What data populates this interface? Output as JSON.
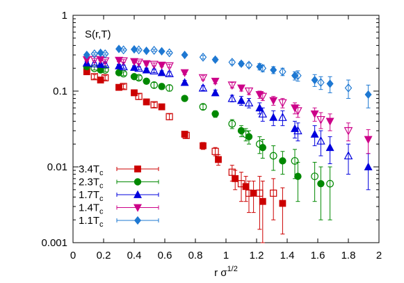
{
  "chart_data": {
    "type": "scatter",
    "title": "",
    "annotation": "S(r,T)",
    "xlabel": "r σ",
    "xlabel_sup": "1/2",
    "ylabel": "",
    "xlim": [
      0,
      2
    ],
    "ylim": [
      0.001,
      1
    ],
    "yscale": "log",
    "grid": false,
    "legend_position": "lower-left",
    "x_ticks": [
      0,
      0.2,
      0.4,
      0.6,
      0.8,
      1,
      1.2,
      1.4,
      1.6,
      1.8,
      2
    ],
    "x_tick_labels": [
      "0",
      "0.2",
      "0.4",
      "0.6",
      "0.8",
      "1",
      "1.2",
      "1.4",
      "1.6",
      "1.8",
      "2"
    ],
    "y_ticks": [
      0.001,
      0.01,
      0.1,
      1
    ],
    "y_tick_labels": [
      "0.001",
      "0.01",
      "0.1",
      "1"
    ],
    "series": [
      {
        "name": "3.4T",
        "name_sub": "c",
        "color": "#cc0000",
        "marker": "square",
        "points": [
          {
            "x": 0.09,
            "y": 0.18,
            "err": 0.01
          },
          {
            "x": 0.14,
            "y": 0.155,
            "err": 0.01
          },
          {
            "x": 0.18,
            "y": 0.14,
            "err": 0.01
          },
          {
            "x": 0.21,
            "y": 0.15,
            "err": 0.01
          },
          {
            "x": 0.3,
            "y": 0.112,
            "err": 0.008
          },
          {
            "x": 0.33,
            "y": 0.115,
            "err": 0.008
          },
          {
            "x": 0.4,
            "y": 0.095,
            "err": 0.007
          },
          {
            "x": 0.43,
            "y": 0.085,
            "err": 0.007
          },
          {
            "x": 0.48,
            "y": 0.072,
            "err": 0.006
          },
          {
            "x": 0.53,
            "y": 0.066,
            "err": 0.005
          },
          {
            "x": 0.58,
            "y": 0.062,
            "err": 0.005
          },
          {
            "x": 0.63,
            "y": 0.046,
            "err": 0.004
          },
          {
            "x": 0.73,
            "y": 0.027,
            "err": 0.002
          },
          {
            "x": 0.74,
            "y": 0.026,
            "err": 0.002
          },
          {
            "x": 0.85,
            "y": 0.019,
            "err": 0.002
          },
          {
            "x": 0.93,
            "y": 0.016,
            "err": 0.002
          },
          {
            "x": 0.95,
            "y": 0.0125,
            "err": 0.002
          },
          {
            "x": 1.04,
            "y": 0.0085,
            "err": 0.002
          },
          {
            "x": 1.06,
            "y": 0.007,
            "err": 0.002
          },
          {
            "x": 1.1,
            "y": 0.006,
            "err": 0.0025
          },
          {
            "x": 1.13,
            "y": 0.0055,
            "err": 0.002
          },
          {
            "x": 1.15,
            "y": 0.0045,
            "err": 0.002
          },
          {
            "x": 1.18,
            "y": 0.0045,
            "err": 0.002
          },
          {
            "x": 1.22,
            "y": 0.0045,
            "err": 0.003
          },
          {
            "x": 1.24,
            "y": 0.0035,
            "err": 0.003
          },
          {
            "x": 1.31,
            "y": 0.0045,
            "err": 0.0025
          },
          {
            "x": 1.37,
            "y": 0.0033,
            "err": 0.002
          }
        ]
      },
      {
        "name": "2.3T",
        "name_sub": "c",
        "color": "#008800",
        "marker": "circle",
        "points": [
          {
            "x": 0.09,
            "y": 0.21,
            "err": 0.01
          },
          {
            "x": 0.14,
            "y": 0.2,
            "err": 0.01
          },
          {
            "x": 0.18,
            "y": 0.19,
            "err": 0.01
          },
          {
            "x": 0.21,
            "y": 0.19,
            "err": 0.01
          },
          {
            "x": 0.3,
            "y": 0.175,
            "err": 0.01
          },
          {
            "x": 0.33,
            "y": 0.17,
            "err": 0.01
          },
          {
            "x": 0.4,
            "y": 0.155,
            "err": 0.01
          },
          {
            "x": 0.43,
            "y": 0.15,
            "err": 0.01
          },
          {
            "x": 0.48,
            "y": 0.135,
            "err": 0.01
          },
          {
            "x": 0.53,
            "y": 0.12,
            "err": 0.01
          },
          {
            "x": 0.58,
            "y": 0.115,
            "err": 0.01
          },
          {
            "x": 0.63,
            "y": 0.11,
            "err": 0.01
          },
          {
            "x": 0.73,
            "y": 0.08,
            "err": 0.006
          },
          {
            "x": 0.85,
            "y": 0.062,
            "err": 0.005
          },
          {
            "x": 0.93,
            "y": 0.05,
            "err": 0.005
          },
          {
            "x": 1.04,
            "y": 0.037,
            "err": 0.005
          },
          {
            "x": 1.1,
            "y": 0.03,
            "err": 0.005
          },
          {
            "x": 1.13,
            "y": 0.027,
            "err": 0.005
          },
          {
            "x": 1.15,
            "y": 0.025,
            "err": 0.005
          },
          {
            "x": 1.22,
            "y": 0.02,
            "err": 0.005
          },
          {
            "x": 1.24,
            "y": 0.018,
            "err": 0.005
          },
          {
            "x": 1.31,
            "y": 0.014,
            "err": 0.005
          },
          {
            "x": 1.37,
            "y": 0.012,
            "err": 0.004
          },
          {
            "x": 1.45,
            "y": 0.012,
            "err": 0.005
          },
          {
            "x": 1.47,
            "y": 0.0075,
            "err": 0.004
          },
          {
            "x": 1.58,
            "y": 0.0075,
            "err": 0.004
          },
          {
            "x": 1.62,
            "y": 0.006,
            "err": 0.004
          },
          {
            "x": 1.68,
            "y": 0.006,
            "err": 0.004
          }
        ]
      },
      {
        "name": "1.7T",
        "name_sub": "c",
        "color": "#0000dd",
        "marker": "triangle-up",
        "points": [
          {
            "x": 0.09,
            "y": 0.235,
            "err": 0.01
          },
          {
            "x": 0.14,
            "y": 0.23,
            "err": 0.01
          },
          {
            "x": 0.18,
            "y": 0.225,
            "err": 0.01
          },
          {
            "x": 0.21,
            "y": 0.225,
            "err": 0.01
          },
          {
            "x": 0.3,
            "y": 0.215,
            "err": 0.01
          },
          {
            "x": 0.33,
            "y": 0.21,
            "err": 0.01
          },
          {
            "x": 0.4,
            "y": 0.205,
            "err": 0.01
          },
          {
            "x": 0.43,
            "y": 0.2,
            "err": 0.01
          },
          {
            "x": 0.48,
            "y": 0.19,
            "err": 0.01
          },
          {
            "x": 0.53,
            "y": 0.185,
            "err": 0.01
          },
          {
            "x": 0.58,
            "y": 0.175,
            "err": 0.01
          },
          {
            "x": 0.63,
            "y": 0.17,
            "err": 0.01
          },
          {
            "x": 0.73,
            "y": 0.13,
            "err": 0.008
          },
          {
            "x": 0.85,
            "y": 0.11,
            "err": 0.008
          },
          {
            "x": 0.93,
            "y": 0.095,
            "err": 0.008
          },
          {
            "x": 1.04,
            "y": 0.08,
            "err": 0.008
          },
          {
            "x": 1.1,
            "y": 0.075,
            "err": 0.01
          },
          {
            "x": 1.15,
            "y": 0.07,
            "err": 0.01
          },
          {
            "x": 1.22,
            "y": 0.06,
            "err": 0.01
          },
          {
            "x": 1.24,
            "y": 0.05,
            "err": 0.01
          },
          {
            "x": 1.31,
            "y": 0.045,
            "err": 0.01
          },
          {
            "x": 1.37,
            "y": 0.045,
            "err": 0.01
          },
          {
            "x": 1.45,
            "y": 0.032,
            "err": 0.008
          },
          {
            "x": 1.47,
            "y": 0.03,
            "err": 0.008
          },
          {
            "x": 1.58,
            "y": 0.027,
            "err": 0.008
          },
          {
            "x": 1.62,
            "y": 0.022,
            "err": 0.008
          },
          {
            "x": 1.68,
            "y": 0.018,
            "err": 0.007
          },
          {
            "x": 1.8,
            "y": 0.014,
            "err": 0.006
          },
          {
            "x": 1.93,
            "y": 0.01,
            "err": 0.005
          }
        ]
      },
      {
        "name": "1.4T",
        "name_sub": "c",
        "color": "#cc0088",
        "marker": "triangle-down",
        "points": [
          {
            "x": 0.09,
            "y": 0.26,
            "err": 0.01
          },
          {
            "x": 0.14,
            "y": 0.26,
            "err": 0.01
          },
          {
            "x": 0.18,
            "y": 0.26,
            "err": 0.01
          },
          {
            "x": 0.21,
            "y": 0.25,
            "err": 0.01
          },
          {
            "x": 0.3,
            "y": 0.255,
            "err": 0.01
          },
          {
            "x": 0.33,
            "y": 0.25,
            "err": 0.01
          },
          {
            "x": 0.4,
            "y": 0.245,
            "err": 0.01
          },
          {
            "x": 0.43,
            "y": 0.24,
            "err": 0.01
          },
          {
            "x": 0.48,
            "y": 0.23,
            "err": 0.01
          },
          {
            "x": 0.53,
            "y": 0.225,
            "err": 0.01
          },
          {
            "x": 0.58,
            "y": 0.22,
            "err": 0.01
          },
          {
            "x": 0.63,
            "y": 0.215,
            "err": 0.01
          },
          {
            "x": 0.73,
            "y": 0.175,
            "err": 0.01
          },
          {
            "x": 0.85,
            "y": 0.15,
            "err": 0.01
          },
          {
            "x": 0.93,
            "y": 0.135,
            "err": 0.01
          },
          {
            "x": 1.04,
            "y": 0.12,
            "err": 0.01
          },
          {
            "x": 1.1,
            "y": 0.11,
            "err": 0.01
          },
          {
            "x": 1.15,
            "y": 0.1,
            "err": 0.01
          },
          {
            "x": 1.22,
            "y": 0.09,
            "err": 0.01
          },
          {
            "x": 1.24,
            "y": 0.085,
            "err": 0.01
          },
          {
            "x": 1.31,
            "y": 0.075,
            "err": 0.01
          },
          {
            "x": 1.37,
            "y": 0.07,
            "err": 0.01
          },
          {
            "x": 1.45,
            "y": 0.06,
            "err": 0.01
          },
          {
            "x": 1.47,
            "y": 0.055,
            "err": 0.01
          },
          {
            "x": 1.58,
            "y": 0.05,
            "err": 0.01
          },
          {
            "x": 1.62,
            "y": 0.042,
            "err": 0.01
          },
          {
            "x": 1.68,
            "y": 0.04,
            "err": 0.01
          },
          {
            "x": 1.8,
            "y": 0.03,
            "err": 0.008
          },
          {
            "x": 1.93,
            "y": 0.023,
            "err": 0.008
          }
        ]
      },
      {
        "name": "1.1T",
        "name_sub": "c",
        "color": "#1e78d2",
        "marker": "diamond",
        "points": [
          {
            "x": 0.09,
            "y": 0.3,
            "err": 0.01
          },
          {
            "x": 0.14,
            "y": 0.31,
            "err": 0.01
          },
          {
            "x": 0.18,
            "y": 0.32,
            "err": 0.01
          },
          {
            "x": 0.21,
            "y": 0.31,
            "err": 0.01
          },
          {
            "x": 0.3,
            "y": 0.36,
            "err": 0.01
          },
          {
            "x": 0.33,
            "y": 0.35,
            "err": 0.01
          },
          {
            "x": 0.4,
            "y": 0.355,
            "err": 0.01
          },
          {
            "x": 0.43,
            "y": 0.35,
            "err": 0.01
          },
          {
            "x": 0.48,
            "y": 0.34,
            "err": 0.01
          },
          {
            "x": 0.53,
            "y": 0.345,
            "err": 0.01
          },
          {
            "x": 0.58,
            "y": 0.335,
            "err": 0.01
          },
          {
            "x": 0.63,
            "y": 0.32,
            "err": 0.01
          },
          {
            "x": 0.73,
            "y": 0.3,
            "err": 0.01
          },
          {
            "x": 0.85,
            "y": 0.28,
            "err": 0.015
          },
          {
            "x": 0.93,
            "y": 0.26,
            "err": 0.015
          },
          {
            "x": 1.04,
            "y": 0.24,
            "err": 0.015
          },
          {
            "x": 1.1,
            "y": 0.23,
            "err": 0.015
          },
          {
            "x": 1.15,
            "y": 0.22,
            "err": 0.015
          },
          {
            "x": 1.22,
            "y": 0.21,
            "err": 0.02
          },
          {
            "x": 1.24,
            "y": 0.2,
            "err": 0.02
          },
          {
            "x": 1.31,
            "y": 0.19,
            "err": 0.02
          },
          {
            "x": 1.37,
            "y": 0.18,
            "err": 0.02
          },
          {
            "x": 1.45,
            "y": 0.16,
            "err": 0.02
          },
          {
            "x": 1.47,
            "y": 0.16,
            "err": 0.025
          },
          {
            "x": 1.58,
            "y": 0.14,
            "err": 0.025
          },
          {
            "x": 1.62,
            "y": 0.13,
            "err": 0.025
          },
          {
            "x": 1.68,
            "y": 0.125,
            "err": 0.03
          },
          {
            "x": 1.8,
            "y": 0.11,
            "err": 0.03
          },
          {
            "x": 1.93,
            "y": 0.09,
            "err": 0.03
          }
        ]
      }
    ]
  }
}
